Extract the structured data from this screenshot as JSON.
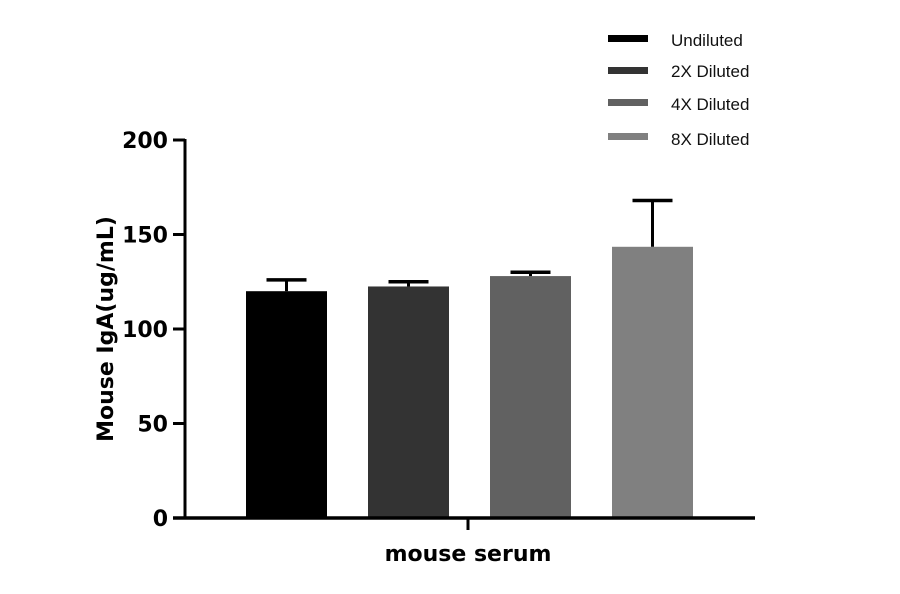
{
  "chart_data": {
    "type": "bar",
    "title": "",
    "xlabel": "mouse serum",
    "ylabel": "Mouse IgA(ug/mL)",
    "ylim": [
      0,
      200
    ],
    "yticks": [
      0,
      50,
      100,
      150,
      200
    ],
    "categories": [
      "mouse serum"
    ],
    "grid": false,
    "legend_position": "top-right",
    "series": [
      {
        "name": "Undiluted",
        "values": [
          120
        ],
        "error": [
          6
        ],
        "color": "#000000"
      },
      {
        "name": "2X Diluted",
        "values": [
          122.5
        ],
        "error": [
          2.5
        ],
        "color": "#333333"
      },
      {
        "name": "4X Diluted",
        "values": [
          128
        ],
        "error": [
          2
        ],
        "color": "#616161"
      },
      {
        "name": "8X Diluted",
        "values": [
          143.5
        ],
        "error": [
          24.5
        ],
        "color": "#808080"
      }
    ]
  },
  "legend": {
    "items": [
      {
        "label": "Undiluted",
        "color": "#000000"
      },
      {
        "label": "2X Diluted",
        "color": "#333333"
      },
      {
        "label": "4X Diluted",
        "color": "#616161"
      },
      {
        "label": "8X Diluted",
        "color": "#808080"
      }
    ]
  },
  "axes": {
    "y_tick_labels": [
      "0",
      "50",
      "100",
      "150",
      "200"
    ],
    "x_category_label": "mouse serum",
    "y_title": "Mouse IgA(ug/mL)"
  }
}
